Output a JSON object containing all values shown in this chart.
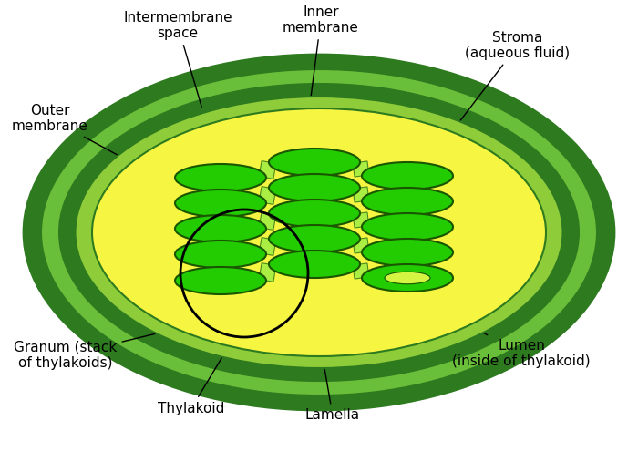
{
  "bg_color": "#ffffff",
  "colors": {
    "outer_membrane": "#2d7a1f",
    "intermembrane": "#6abf3a",
    "inner_membrane_outer": "#2d7a1f",
    "inner_membrane_inner": "#8fcc3a",
    "stroma_band": "#2d7a1f",
    "stroma_fill": "#f5f542",
    "thylakoid_fill": "#22cc00",
    "thylakoid_edge": "#1a5500",
    "lamella_fill": "#aaee44",
    "lamella_edge": "#4a8a1a",
    "granum_circle": "#000000"
  },
  "labels": {
    "outer_membrane": "Outer\nmembrane",
    "intermembrane_space": "Intermembrane\nspace",
    "inner_membrane": "Inner\nmembrane",
    "stroma": "Stroma\n(aqueous fluid)",
    "granum": "Granum (stack\nof thylakoids)",
    "thylakoid": "Thylakoid",
    "lamella": "Lamella",
    "lumen": "Lumen\n(inside of thylakoid)"
  },
  "figsize": [
    7.0,
    4.95
  ],
  "dpi": 100
}
